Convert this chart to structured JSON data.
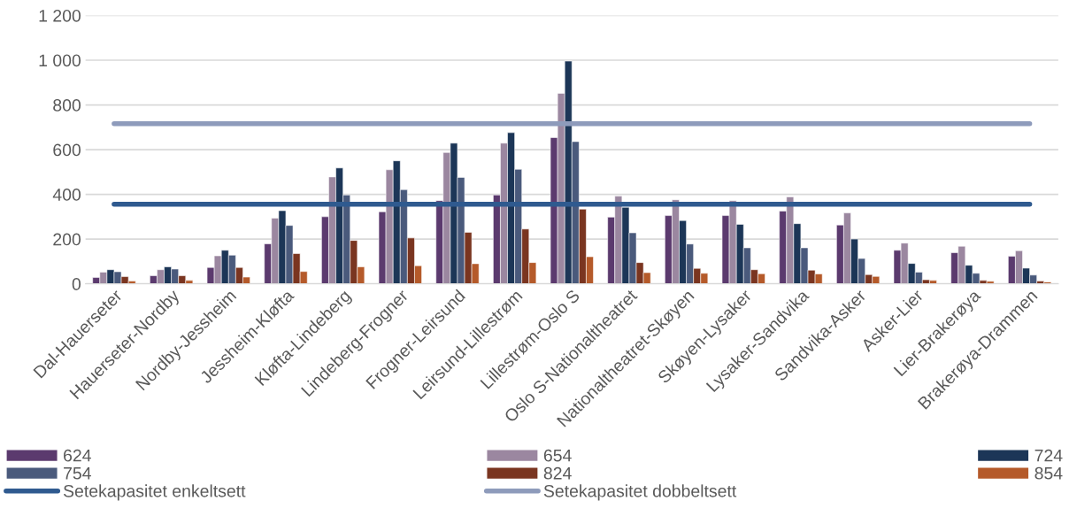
{
  "chart_data": {
    "type": "bar",
    "categories": [
      "Dal-Hauerseter",
      "Hauerseter-Nordby",
      "Nordby-Jessheim",
      "Jessheim-Kløfta",
      "Kløfta-Lindeberg",
      "Lindeberg-Frogner",
      "Frogner-Leirsund",
      "Leirsund-Lillestrøm",
      "Lillestrøm-Oslo S",
      "Oslo S-Nationaltheatret",
      "Nationaltheatret-Skøyen",
      "Skøyen-Lysaker",
      "Lysaker-Sandvika",
      "Sandvika-Asker",
      "Asker-Lier",
      "Lier-Brakerøya",
      "Brakerøya-Drammen"
    ],
    "series": [
      {
        "name": "624",
        "color": "#5b3a6e",
        "values": [
          28,
          36,
          73,
          179,
          300,
          322,
          372,
          397,
          654,
          298,
          305,
          305,
          325,
          263,
          150,
          139,
          123
        ]
      },
      {
        "name": "654",
        "color": "#9b87a0",
        "values": [
          52,
          63,
          125,
          294,
          478,
          510,
          587,
          629,
          852,
          392,
          376,
          372,
          389,
          317,
          182,
          168,
          148
        ]
      },
      {
        "name": "724",
        "color": "#1c3657",
        "values": [
          63,
          76,
          150,
          327,
          518,
          550,
          629,
          676,
          996,
          342,
          283,
          266,
          269,
          200,
          91,
          83,
          70
        ]
      },
      {
        "name": "754",
        "color": "#4a5a7c",
        "values": [
          54,
          66,
          128,
          261,
          397,
          421,
          476,
          512,
          636,
          228,
          178,
          161,
          161,
          113,
          52,
          47,
          39
        ]
      },
      {
        "name": "824",
        "color": "#7a3520",
        "values": [
          32,
          36,
          73,
          135,
          194,
          205,
          230,
          245,
          334,
          95,
          69,
          63,
          61,
          41,
          18,
          15,
          12
        ]
      },
      {
        "name": "854",
        "color": "#b55a2a",
        "values": [
          12,
          15,
          30,
          55,
          76,
          81,
          90,
          95,
          121,
          50,
          47,
          45,
          44,
          33,
          15,
          11,
          8
        ]
      },
      {
        "name": "Setekapasitet enkeltsett",
        "type": "line",
        "color": "#2f5a8f",
        "values": [
          356,
          356,
          356,
          356,
          356,
          356,
          356,
          356,
          356,
          356,
          356,
          356,
          356,
          356,
          356,
          356,
          356
        ]
      },
      {
        "name": "Setekapasitet dobbeltsett",
        "type": "line",
        "color": "#8e9bbb",
        "values": [
          716,
          716,
          716,
          716,
          716,
          716,
          716,
          716,
          716,
          716,
          716,
          716,
          716,
          716,
          716,
          716,
          716
        ]
      }
    ],
    "ylim": [
      0,
      1200
    ],
    "yticks": [
      0,
      200,
      400,
      600,
      800,
      {
        "value": 1000,
        "label": "1 000"
      },
      {
        "value": 1200,
        "label": "1 200"
      }
    ],
    "grid": "y",
    "legend": "bottom",
    "line_style": "solid"
  }
}
